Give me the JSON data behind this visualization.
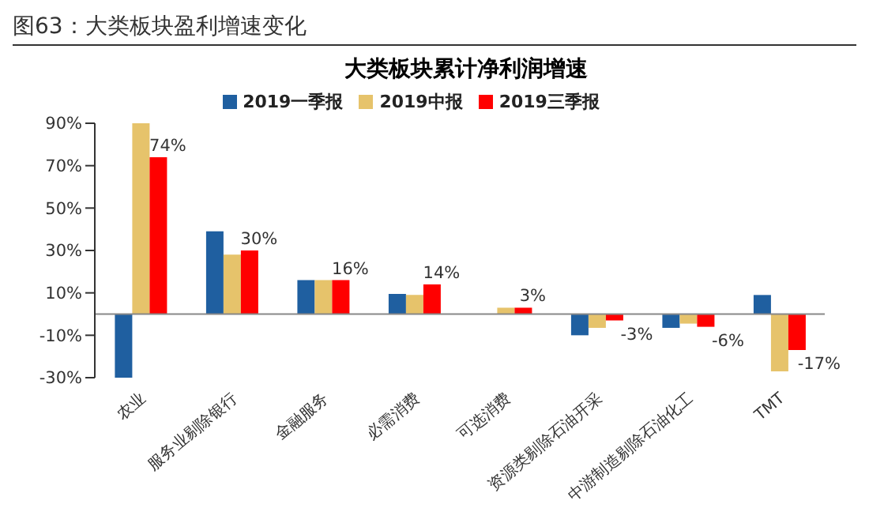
{
  "chart_data": {
    "type": "bar",
    "title": "图63：大类板块盈利增速变化",
    "subtitle": "大类板块累计净利润增速",
    "categories": [
      "农业",
      "服务业剔除银行",
      "金融服务",
      "必需消费",
      "可选消费",
      "资源类剔除石油开采",
      "中游制造剔除石油化工",
      "TMT"
    ],
    "series": [
      {
        "name": "2019一季报",
        "color": "#1f5fa0",
        "values": [
          -30,
          39,
          16,
          9.5,
          null,
          -10,
          -6.5,
          9
        ]
      },
      {
        "name": "2019中报",
        "color": "#e6c36b",
        "values": [
          90,
          28,
          16,
          9,
          3,
          -6.5,
          -4.5,
          -27
        ]
      },
      {
        "name": "2019三季报",
        "color": "#ff0000",
        "values": [
          74,
          30,
          16,
          14,
          3,
          -3,
          -6,
          -17
        ],
        "value_labels": [
          "74%",
          "30%",
          "16%",
          "14%",
          "3%",
          "-3%",
          "-6%",
          "-17%"
        ]
      }
    ],
    "ylim": [
      -30,
      90
    ],
    "yticks": [
      {
        "value": -30,
        "label": "-30%"
      },
      {
        "value": -10,
        "label": "-10%"
      },
      {
        "value": 10,
        "label": "10%"
      },
      {
        "value": 30,
        "label": "30%"
      },
      {
        "value": 50,
        "label": "50%"
      },
      {
        "value": 70,
        "label": "70%"
      },
      {
        "value": 90,
        "label": "90%"
      }
    ],
    "legend": "top",
    "grid": false
  }
}
